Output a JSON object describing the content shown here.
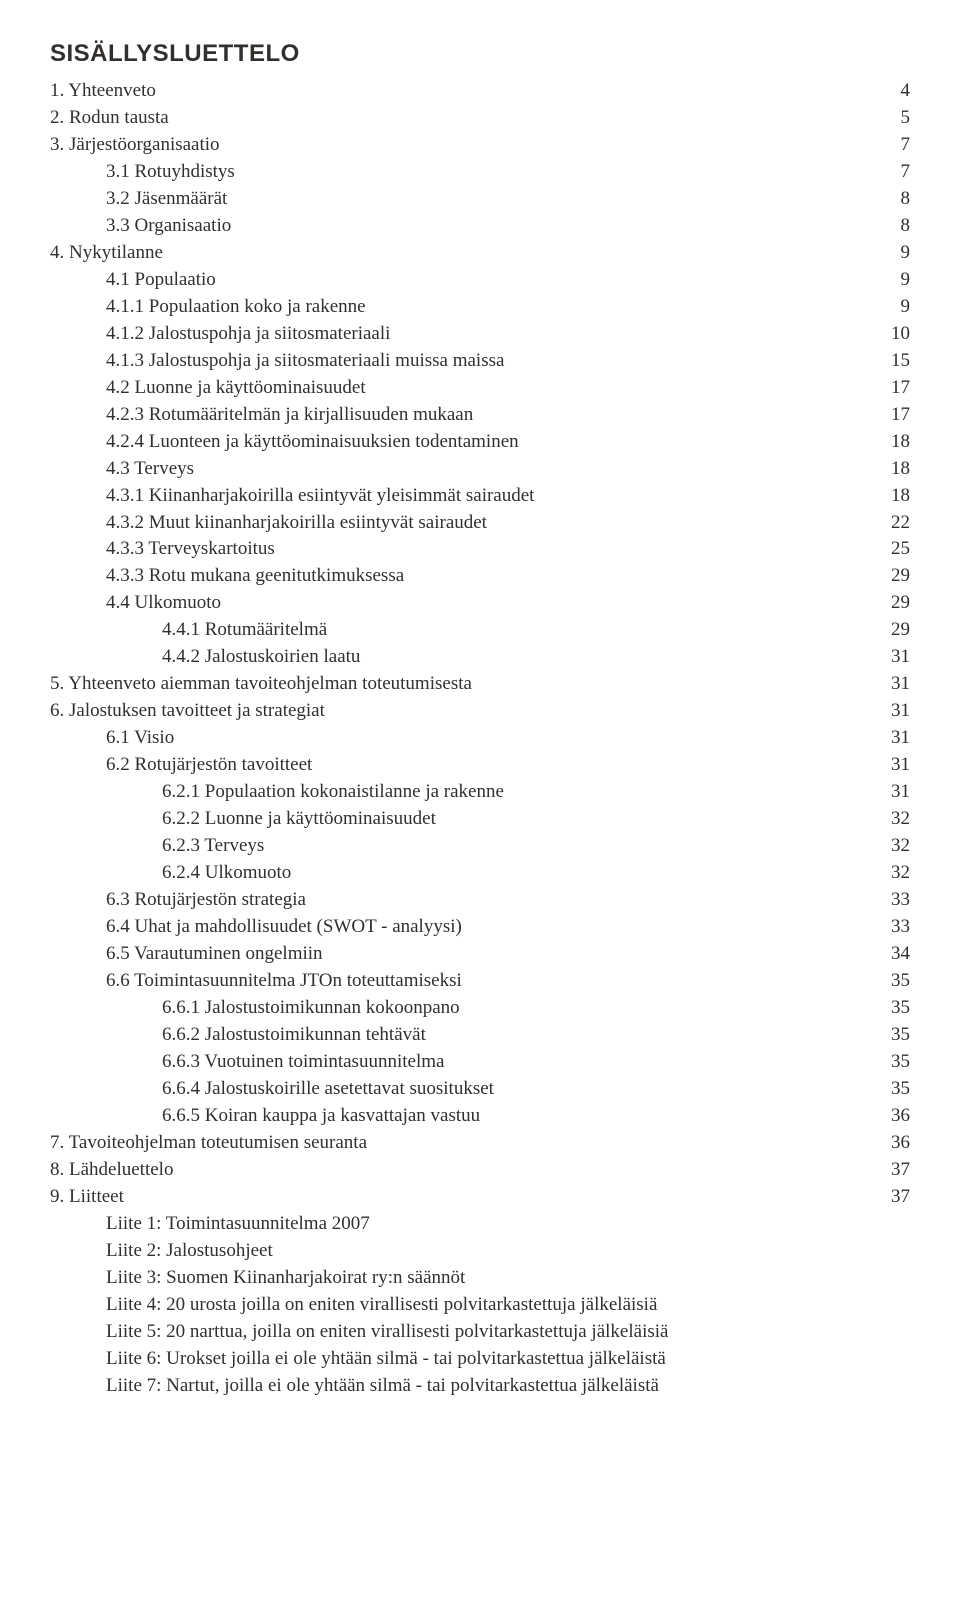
{
  "title": "SISÄLLYSLUETTELO",
  "toc": [
    {
      "label": "1. Yhteenveto",
      "page": "4",
      "indent": 0
    },
    {
      "label": "2. Rodun tausta",
      "page": "5",
      "indent": 0
    },
    {
      "label": "3. Järjestöorganisaatio",
      "page": "7",
      "indent": 0
    },
    {
      "label": "3.1 Rotuyhdistys",
      "page": "7",
      "indent": 1
    },
    {
      "label": "3.2 Jäsenmäärät",
      "page": "8",
      "indent": 1
    },
    {
      "label": "3.3 Organisaatio",
      "page": "8",
      "indent": 1
    },
    {
      "label": "4. Nykytilanne",
      "page": "9",
      "indent": 0
    },
    {
      "label": "4.1 Populaatio",
      "page": "9",
      "indent": 1
    },
    {
      "label": "4.1.1 Populaation koko ja rakenne",
      "page": "9",
      "indent": 1
    },
    {
      "label": "4.1.2 Jalostuspohja ja siitosmateriaali",
      "page": "10",
      "indent": 1
    },
    {
      "label": "4.1.3 Jalostuspohja ja siitosmateriaali muissa maissa",
      "page": "15",
      "indent": 1
    },
    {
      "label": "4.2 Luonne ja käyttöominaisuudet",
      "page": "17",
      "indent": 1
    },
    {
      "label": "4.2.3 Rotumääritelmän ja kirjallisuuden mukaan",
      "page": "17",
      "indent": 1
    },
    {
      "label": "4.2.4 Luonteen ja käyttöominaisuuksien todentaminen",
      "page": "18",
      "indent": 1
    },
    {
      "label": "4.3 Terveys",
      "page": "18",
      "indent": 1
    },
    {
      "label": "4.3.1 Kiinanharjakoirilla esiintyvät yleisimmät sairaudet",
      "page": "18",
      "indent": 1
    },
    {
      "label": "4.3.2 Muut kiinanharjakoirilla esiintyvät sairaudet",
      "page": "22",
      "indent": 1
    },
    {
      "label": "4.3.3 Terveyskartoitus",
      "page": "25",
      "indent": 1
    },
    {
      "label": "4.3.3 Rotu mukana geenitutkimuksessa",
      "page": "29",
      "indent": 1
    },
    {
      "label": "4.4 Ulkomuoto",
      "page": "29",
      "indent": 1
    },
    {
      "label": "4.4.1 Rotumääritelmä",
      "page": "29",
      "indent": 2
    },
    {
      "label": "4.4.2 Jalostuskoirien laatu",
      "page": "31",
      "indent": 2
    },
    {
      "label": "5. Yhteenveto aiemman tavoiteohjelman toteutumisesta",
      "page": "31",
      "indent": 0
    },
    {
      "label": "6. Jalostuksen tavoitteet ja strategiat",
      "page": "31",
      "indent": 0
    },
    {
      "label": "6.1 Visio",
      "page": "31",
      "indent": 1
    },
    {
      "label": "6.2 Rotujärjestön tavoitteet",
      "page": "31",
      "indent": 1
    },
    {
      "label": "6.2.1 Populaation kokonaistilanne ja rakenne",
      "page": "31",
      "indent": 2
    },
    {
      "label": "6.2.2 Luonne ja käyttöominaisuudet",
      "page": "32",
      "indent": 2
    },
    {
      "label": "6.2.3 Terveys",
      "page": "32",
      "indent": 2
    },
    {
      "label": "6.2.4 Ulkomuoto",
      "page": "32",
      "indent": 2
    },
    {
      "label": "6.3 Rotujärjestön strategia",
      "page": "33",
      "indent": 1
    },
    {
      "label": "6.4 Uhat ja mahdollisuudet (SWOT - analyysi)",
      "page": "33",
      "indent": 1
    },
    {
      "label": "6.5 Varautuminen ongelmiin",
      "page": "34",
      "indent": 1
    },
    {
      "label": "6.6 Toimintasuunnitelma JTOn toteuttamiseksi",
      "page": "35",
      "indent": 1
    },
    {
      "label": "6.6.1 Jalostustoimikunnan kokoonpano",
      "page": "35",
      "indent": 2
    },
    {
      "label": "6.6.2 Jalostustoimikunnan tehtävät",
      "page": "35",
      "indent": 2
    },
    {
      "label": "6.6.3 Vuotuinen toimintasuunnitelma",
      "page": "35",
      "indent": 2
    },
    {
      "label": "6.6.4 Jalostuskoirille asetettavat suositukset",
      "page": "35",
      "indent": 2
    },
    {
      "label": "6.6.5 Koiran kauppa ja kasvattajan vastuu",
      "page": "36",
      "indent": 2
    },
    {
      "label": "7. Tavoiteohjelman toteutumisen seuranta",
      "page": "36",
      "indent": 0
    },
    {
      "label": "8. Lähdeluettelo",
      "page": "37",
      "indent": 0
    },
    {
      "label": "9. Liitteet",
      "page": "37",
      "indent": 0
    },
    {
      "label": "Liite 1: Toimintasuunnitelma 2007",
      "page": "",
      "indent": 1
    },
    {
      "label": "Liite 2: Jalostusohjeet",
      "page": "",
      "indent": 1
    },
    {
      "label": "Liite 3: Suomen Kiinanharjakoirat ry:n säännöt",
      "page": "",
      "indent": 1
    },
    {
      "label": "Liite 4: 20 urosta joilla on eniten virallisesti polvitarkastettuja jälkeläisiä",
      "page": "",
      "indent": 1
    },
    {
      "label": "Liite 5: 20 narttua, joilla on eniten virallisesti polvitarkastettuja jälkeläisiä",
      "page": "",
      "indent": 1
    },
    {
      "label": "Liite 6: Urokset joilla ei ole yhtään silmä - tai polvitarkastettua jälkeläistä",
      "page": "",
      "indent": 1
    },
    {
      "label": "Liite 7: Nartut, joilla ei ole yhtään silmä - tai polvitarkastettua jälkeläistä",
      "page": "",
      "indent": 1
    }
  ]
}
